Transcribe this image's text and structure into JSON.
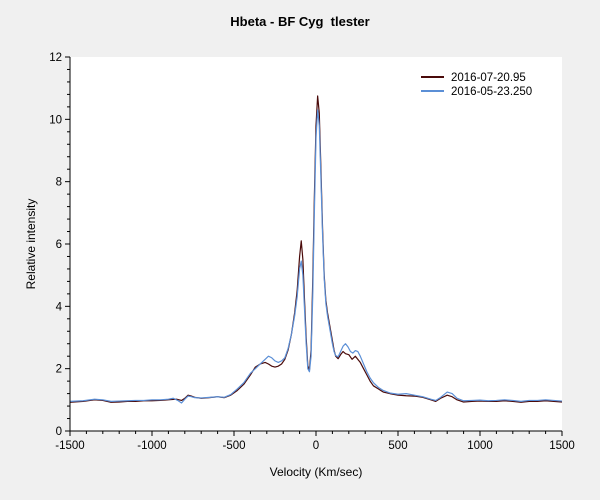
{
  "chart_data": {
    "type": "line",
    "title": "Hbeta - BF Cyg  tlester",
    "xlabel": "Velocity (Km/sec)",
    "ylabel": "Relative intensity",
    "xlim": [
      -1500,
      1500
    ],
    "ylim": [
      0,
      12
    ],
    "x_ticks": [
      -1500,
      -1000,
      -500,
      0,
      500,
      1000,
      1500
    ],
    "y_ticks": [
      0,
      2,
      4,
      6,
      8,
      10,
      12
    ],
    "grid": false,
    "legend_position": "top-right",
    "colors": {
      "background": "#f0f0f0",
      "plot_area": "#ffffff"
    },
    "series": [
      {
        "name": "2016-07-20.95",
        "color": "#4a0a0a",
        "points": [
          [
            -1500,
            0.92
          ],
          [
            -1420,
            0.95
          ],
          [
            -1350,
            1.0
          ],
          [
            -1300,
            0.98
          ],
          [
            -1250,
            0.92
          ],
          [
            -1200,
            0.93
          ],
          [
            -1150,
            0.95
          ],
          [
            -1100,
            0.95
          ],
          [
            -1050,
            0.97
          ],
          [
            -1000,
            0.97
          ],
          [
            -950,
            0.98
          ],
          [
            -900,
            1.0
          ],
          [
            -850,
            1.02
          ],
          [
            -820,
            0.98
          ],
          [
            -800,
            1.05
          ],
          [
            -780,
            1.15
          ],
          [
            -760,
            1.12
          ],
          [
            -740,
            1.08
          ],
          [
            -700,
            1.05
          ],
          [
            -650,
            1.07
          ],
          [
            -600,
            1.1
          ],
          [
            -560,
            1.07
          ],
          [
            -520,
            1.15
          ],
          [
            -480,
            1.3
          ],
          [
            -440,
            1.5
          ],
          [
            -400,
            1.8
          ],
          [
            -370,
            2.05
          ],
          [
            -340,
            2.15
          ],
          [
            -310,
            2.2
          ],
          [
            -290,
            2.15
          ],
          [
            -270,
            2.08
          ],
          [
            -250,
            2.05
          ],
          [
            -230,
            2.08
          ],
          [
            -210,
            2.15
          ],
          [
            -190,
            2.3
          ],
          [
            -170,
            2.6
          ],
          [
            -150,
            3.1
          ],
          [
            -130,
            3.8
          ],
          [
            -115,
            4.5
          ],
          [
            -100,
            5.6
          ],
          [
            -90,
            6.1
          ],
          [
            -80,
            5.5
          ],
          [
            -70,
            4.2
          ],
          [
            -60,
            3.0
          ],
          [
            -50,
            2.1
          ],
          [
            -40,
            1.95
          ],
          [
            -30,
            2.6
          ],
          [
            -20,
            4.8
          ],
          [
            -10,
            7.5
          ],
          [
            0,
            9.8
          ],
          [
            10,
            10.75
          ],
          [
            20,
            10.2
          ],
          [
            30,
            8.4
          ],
          [
            40,
            6.5
          ],
          [
            50,
            5.0
          ],
          [
            60,
            4.2
          ],
          [
            70,
            3.8
          ],
          [
            80,
            3.5
          ],
          [
            90,
            3.2
          ],
          [
            100,
            2.9
          ],
          [
            110,
            2.6
          ],
          [
            120,
            2.4
          ],
          [
            135,
            2.32
          ],
          [
            150,
            2.45
          ],
          [
            165,
            2.55
          ],
          [
            180,
            2.48
          ],
          [
            200,
            2.45
          ],
          [
            220,
            2.3
          ],
          [
            240,
            2.4
          ],
          [
            255,
            2.3
          ],
          [
            270,
            2.2
          ],
          [
            290,
            2.0
          ],
          [
            310,
            1.8
          ],
          [
            330,
            1.6
          ],
          [
            350,
            1.45
          ],
          [
            380,
            1.35
          ],
          [
            410,
            1.25
          ],
          [
            450,
            1.2
          ],
          [
            500,
            1.15
          ],
          [
            550,
            1.13
          ],
          [
            600,
            1.12
          ],
          [
            650,
            1.08
          ],
          [
            700,
            1.0
          ],
          [
            730,
            0.95
          ],
          [
            760,
            1.05
          ],
          [
            800,
            1.15
          ],
          [
            830,
            1.1
          ],
          [
            860,
            1.0
          ],
          [
            900,
            0.93
          ],
          [
            950,
            0.95
          ],
          [
            1000,
            0.96
          ],
          [
            1050,
            0.95
          ],
          [
            1100,
            0.95
          ],
          [
            1150,
            0.97
          ],
          [
            1200,
            0.95
          ],
          [
            1250,
            0.92
          ],
          [
            1300,
            0.95
          ],
          [
            1350,
            0.95
          ],
          [
            1400,
            0.97
          ],
          [
            1450,
            0.95
          ],
          [
            1500,
            0.93
          ]
        ]
      },
      {
        "name": "2016-05-23.250",
        "color": "#5b8fd6",
        "points": [
          [
            -1500,
            0.95
          ],
          [
            -1420,
            0.97
          ],
          [
            -1350,
            1.02
          ],
          [
            -1300,
            1.0
          ],
          [
            -1250,
            0.95
          ],
          [
            -1200,
            0.96
          ],
          [
            -1150,
            0.97
          ],
          [
            -1100,
            0.98
          ],
          [
            -1050,
            0.98
          ],
          [
            -1000,
            1.0
          ],
          [
            -950,
            1.0
          ],
          [
            -900,
            1.02
          ],
          [
            -870,
            1.05
          ],
          [
            -840,
            0.97
          ],
          [
            -820,
            0.9
          ],
          [
            -800,
            1.02
          ],
          [
            -780,
            1.12
          ],
          [
            -760,
            1.1
          ],
          [
            -740,
            1.07
          ],
          [
            -700,
            1.06
          ],
          [
            -650,
            1.08
          ],
          [
            -600,
            1.1
          ],
          [
            -560,
            1.08
          ],
          [
            -520,
            1.17
          ],
          [
            -480,
            1.35
          ],
          [
            -440,
            1.55
          ],
          [
            -400,
            1.85
          ],
          [
            -370,
            2.0
          ],
          [
            -340,
            2.15
          ],
          [
            -310,
            2.3
          ],
          [
            -290,
            2.4
          ],
          [
            -270,
            2.35
          ],
          [
            -250,
            2.25
          ],
          [
            -230,
            2.2
          ],
          [
            -210,
            2.25
          ],
          [
            -190,
            2.35
          ],
          [
            -170,
            2.65
          ],
          [
            -150,
            3.1
          ],
          [
            -130,
            3.7
          ],
          [
            -115,
            4.3
          ],
          [
            -100,
            5.2
          ],
          [
            -90,
            5.45
          ],
          [
            -80,
            5.0
          ],
          [
            -70,
            3.9
          ],
          [
            -60,
            2.8
          ],
          [
            -50,
            2.0
          ],
          [
            -40,
            1.9
          ],
          [
            -30,
            2.4
          ],
          [
            -20,
            4.3
          ],
          [
            -10,
            7.0
          ],
          [
            0,
            9.4
          ],
          [
            10,
            10.3
          ],
          [
            20,
            9.8
          ],
          [
            30,
            8.1
          ],
          [
            40,
            6.3
          ],
          [
            50,
            4.9
          ],
          [
            60,
            4.1
          ],
          [
            70,
            3.7
          ],
          [
            80,
            3.4
          ],
          [
            90,
            3.1
          ],
          [
            100,
            2.8
          ],
          [
            110,
            2.55
          ],
          [
            120,
            2.42
          ],
          [
            135,
            2.38
          ],
          [
            150,
            2.55
          ],
          [
            165,
            2.72
          ],
          [
            180,
            2.8
          ],
          [
            195,
            2.7
          ],
          [
            210,
            2.55
          ],
          [
            225,
            2.5
          ],
          [
            240,
            2.58
          ],
          [
            255,
            2.55
          ],
          [
            270,
            2.4
          ],
          [
            290,
            2.15
          ],
          [
            310,
            1.9
          ],
          [
            330,
            1.7
          ],
          [
            350,
            1.55
          ],
          [
            380,
            1.4
          ],
          [
            410,
            1.3
          ],
          [
            450,
            1.22
          ],
          [
            500,
            1.18
          ],
          [
            550,
            1.2
          ],
          [
            600,
            1.15
          ],
          [
            650,
            1.1
          ],
          [
            700,
            1.02
          ],
          [
            730,
            0.98
          ],
          [
            760,
            1.08
          ],
          [
            800,
            1.25
          ],
          [
            830,
            1.2
          ],
          [
            860,
            1.05
          ],
          [
            900,
            0.97
          ],
          [
            950,
            0.98
          ],
          [
            1000,
            0.99
          ],
          [
            1050,
            0.97
          ],
          [
            1100,
            0.98
          ],
          [
            1150,
            1.0
          ],
          [
            1200,
            0.98
          ],
          [
            1250,
            0.95
          ],
          [
            1300,
            0.98
          ],
          [
            1350,
            0.98
          ],
          [
            1400,
            1.0
          ],
          [
            1450,
            0.98
          ],
          [
            1500,
            0.96
          ]
        ]
      }
    ]
  }
}
